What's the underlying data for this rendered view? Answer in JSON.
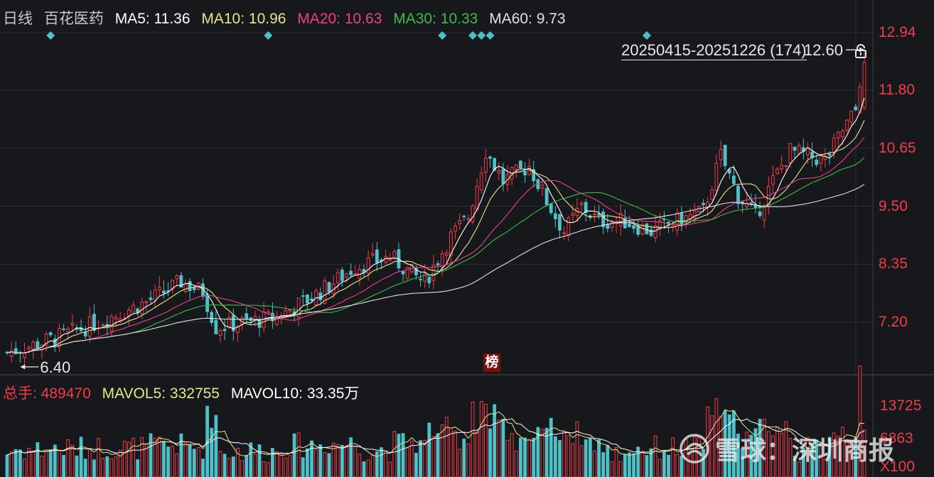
{
  "header": {
    "period": "日线",
    "stock_name": "百花医药",
    "ma": [
      {
        "label": "MA5: 11.36",
        "color": "#ffffff"
      },
      {
        "label": "MA10: 10.96",
        "color": "#e7e48c"
      },
      {
        "label": "MA20: 10.63",
        "color": "#ec3f8e"
      },
      {
        "label": "MA30: 10.33",
        "color": "#3bbd4a"
      },
      {
        "label": "MA60: 9.73",
        "color": "#e0e0e0"
      }
    ]
  },
  "range_label": "20250415-20251226 (174)",
  "badge_text": "榜",
  "watermark": "雪球：深圳商报",
  "vol_header": {
    "items": [
      {
        "label": "总手: 489470",
        "color": "#f13d4a"
      },
      {
        "label": "MAVOL5: 332755",
        "color": "#e7e48c"
      },
      {
        "label": "MAVOL10: 33.35万",
        "color": "#ffffff"
      }
    ]
  },
  "colors": {
    "up": "#f13d4a",
    "down": "#4ec0c8",
    "marker": "#4ec0c8"
  },
  "chart_data": {
    "type": "candlestick",
    "price_axis": {
      "ticks": [
        "12.94",
        "11.80",
        "10.65",
        "9.50",
        "8.35",
        "7.20"
      ],
      "min": 6.3,
      "max": 13.3
    },
    "volume_axis": {
      "ticks": [
        "13725",
        "6863",
        "X100"
      ]
    },
    "annotations": {
      "high": "12.60",
      "low": "6.40"
    },
    "event_marker_indices": [
      10,
      60,
      100,
      107,
      109,
      111,
      147
    ],
    "anchors": [
      [
        0,
        6.6
      ],
      [
        8,
        6.8
      ],
      [
        18,
        7.1
      ],
      [
        32,
        7.6
      ],
      [
        40,
        8.0
      ],
      [
        45,
        7.8
      ],
      [
        48,
        7.1
      ],
      [
        55,
        7.2
      ],
      [
        62,
        7.3
      ],
      [
        72,
        7.8
      ],
      [
        80,
        8.3
      ],
      [
        88,
        8.5
      ],
      [
        94,
        8.1
      ],
      [
        96,
        8.0
      ],
      [
        102,
        8.9
      ],
      [
        106,
        9.3
      ],
      [
        110,
        10.6
      ],
      [
        114,
        10.0
      ],
      [
        120,
        10.3
      ],
      [
        124,
        9.6
      ],
      [
        128,
        9.0
      ],
      [
        132,
        9.5
      ],
      [
        136,
        9.2
      ],
      [
        142,
        9.2
      ],
      [
        148,
        9.0
      ],
      [
        154,
        9.2
      ],
      [
        160,
        9.4
      ],
      [
        164,
        10.5
      ],
      [
        168,
        9.7
      ],
      [
        172,
        9.3
      ],
      [
        176,
        10.0
      ],
      [
        180,
        10.6
      ],
      [
        184,
        10.5
      ],
      [
        188,
        10.4
      ],
      [
        192,
        11.0
      ],
      [
        195,
        11.4
      ],
      [
        197,
        12.6
      ]
    ]
  }
}
